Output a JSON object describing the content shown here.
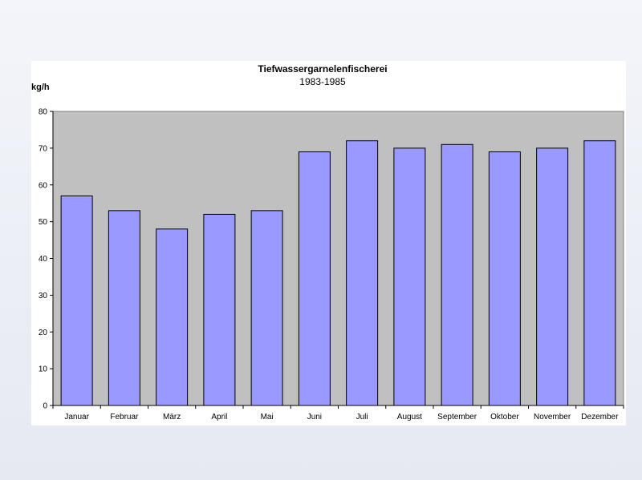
{
  "chart_data": {
    "type": "bar",
    "title": "Tiefwassergarnelenfischerei",
    "subtitle": "1983-1985",
    "xlabel": "",
    "ylabel": "kg/h",
    "categories": [
      "Januar",
      "Februar",
      "März",
      "April",
      "Mai",
      "Juni",
      "Juli",
      "August",
      "September",
      "Oktober",
      "November",
      "Dezember"
    ],
    "values": [
      57,
      53,
      48,
      52,
      53,
      69,
      72,
      70,
      71,
      69,
      70,
      72
    ],
    "ylim": [
      0,
      80
    ],
    "yticks": [
      0,
      10,
      20,
      30,
      40,
      50,
      60,
      70,
      80
    ],
    "grid": false,
    "legend": "none",
    "colors": {
      "bar_fill": "#9999ff",
      "bar_stroke": "#000000",
      "plot_background": "#c0c0c0",
      "card_background": "#ffffff"
    }
  }
}
